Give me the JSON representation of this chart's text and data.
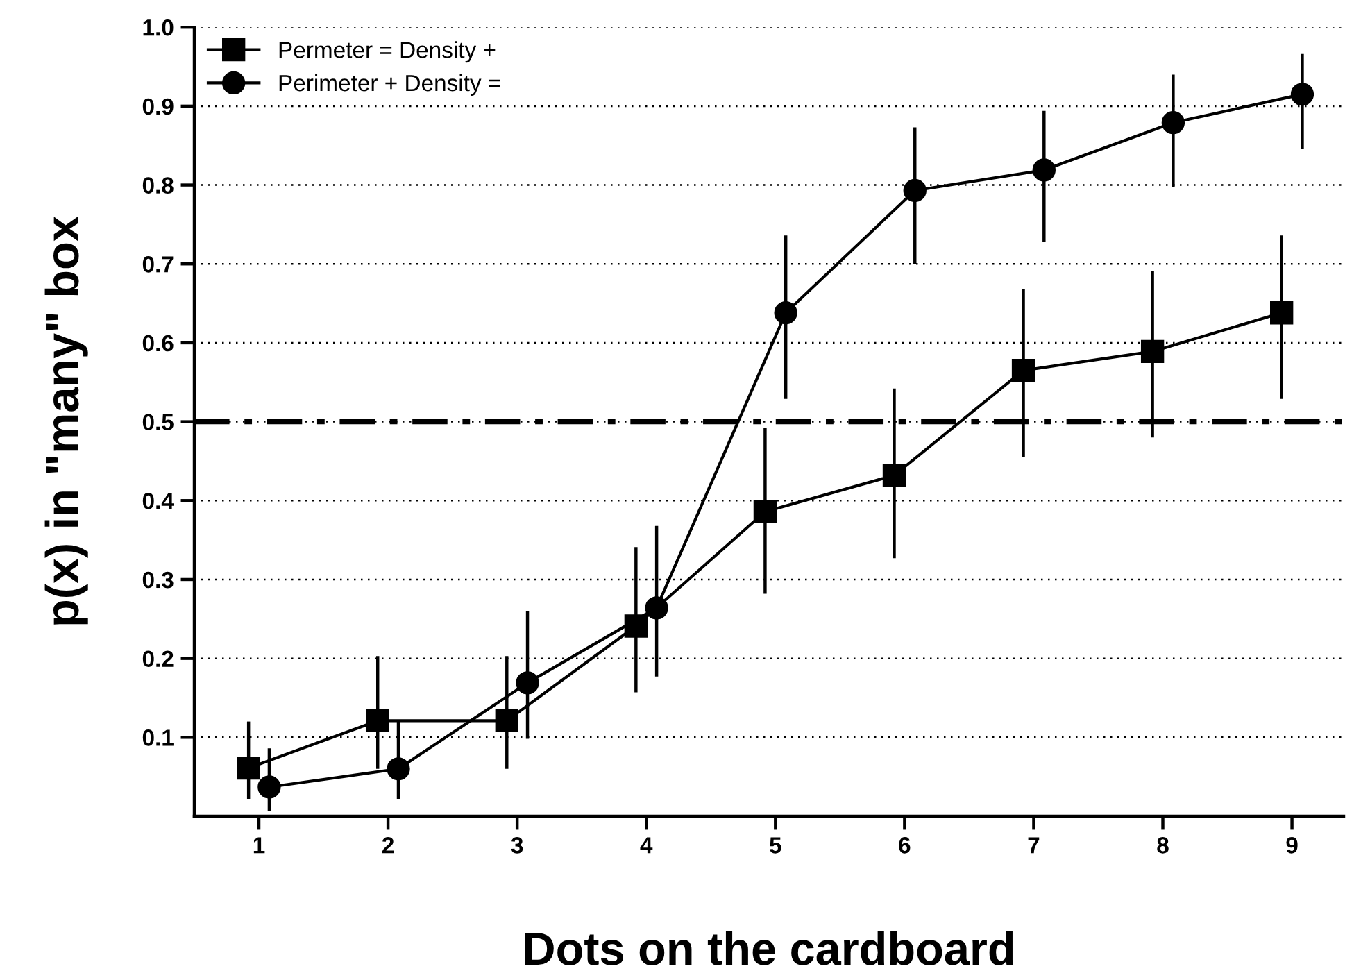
{
  "chart_data": {
    "type": "line",
    "xlabel": "Dots on the cardboard",
    "ylabel": "p(x) in \"many\" box",
    "xlim": [
      0.5,
      9.4
    ],
    "xticks": [
      1,
      2,
      3,
      4,
      5,
      6,
      7,
      8,
      9
    ],
    "ylim": [
      0,
      1.0
    ],
    "yticks": [
      0.1,
      0.2,
      0.3,
      0.4,
      0.5,
      0.6,
      0.7,
      0.8,
      0.9,
      {
        "value": 1.0,
        "label": "1.0"
      }
    ],
    "grid": "y",
    "legend": "top left",
    "line_style": "solid",
    "ref_lines": [
      {
        "axis": "y",
        "value": 0.5,
        "label": null,
        "color": "#000000",
        "line_style": "dashdot"
      }
    ],
    "series": [
      {
        "name": "Permeter = Density +",
        "color": "#000000",
        "marker": "square",
        "x": [
          0.92,
          1.92,
          2.92,
          3.92,
          4.92,
          5.92,
          6.92,
          7.92,
          8.92
        ],
        "values": [
          0.061,
          0.121,
          0.121,
          0.241,
          0.386,
          0.432,
          0.565,
          0.589,
          0.638
        ],
        "errors": [
          [
            0.022,
            0.12
          ],
          [
            0.06,
            0.203
          ],
          [
            0.06,
            0.203
          ],
          [
            0.157,
            0.341
          ],
          [
            0.282,
            0.492
          ],
          [
            0.327,
            0.542
          ],
          [
            0.455,
            0.668
          ],
          [
            0.48,
            0.691
          ],
          [
            0.529,
            0.736
          ]
        ]
      },
      {
        "name": "Perimeter + Density =",
        "color": "#000000",
        "marker": "circle",
        "x": [
          1.08,
          2.08,
          3.08,
          4.08,
          5.08,
          6.08,
          7.08,
          8.08,
          9.08
        ],
        "values": [
          0.037,
          0.06,
          0.169,
          0.264,
          0.638,
          0.793,
          0.819,
          0.879,
          0.915
        ],
        "errors": [
          [
            0.007,
            0.086
          ],
          [
            0.022,
            0.121
          ],
          [
            0.098,
            0.26
          ],
          [
            0.177,
            0.368
          ],
          [
            0.529,
            0.736
          ],
          [
            0.7,
            0.873
          ],
          [
            0.728,
            0.894
          ],
          [
            0.797,
            0.94
          ],
          [
            0.846,
            0.966
          ]
        ]
      }
    ]
  }
}
